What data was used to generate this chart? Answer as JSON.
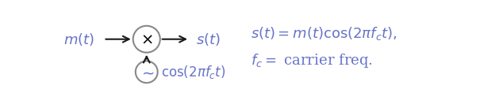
{
  "bg_color": "#ffffff",
  "text_color": "#6673c8",
  "arrow_color": "#1a1a1a",
  "circle_edge_color": "#888888",
  "fig_width": 6.1,
  "fig_height": 1.32,
  "dpi": 100,
  "eq1_text": "$s(t) = m(t)\\cos(2\\pi f_c t),$",
  "eq2_text": "$f_c = $ carrier freq.",
  "label_mt_text": "$m(t)$",
  "label_st_text": "$s(t)$",
  "label_cos_text": "$\\cos(2\\pi f_c t)$",
  "mult_symbol": "$\\times$",
  "osc_symbol": "$\\sim$",
  "fontsize": 13
}
